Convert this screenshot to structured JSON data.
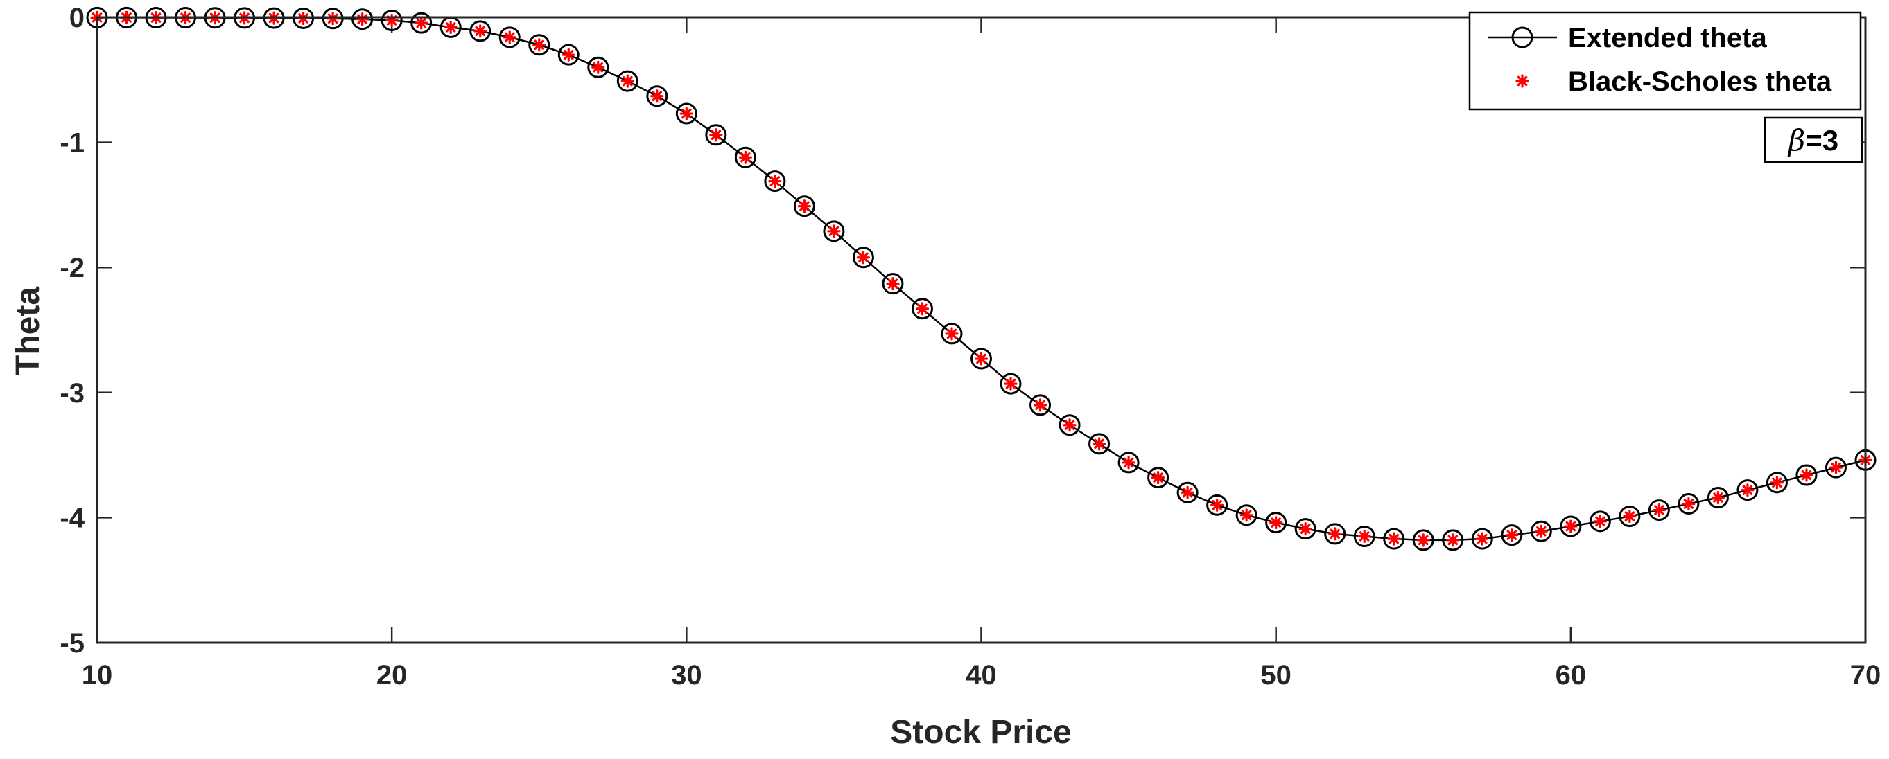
{
  "chart_data": {
    "type": "line",
    "title": "",
    "xlabel": "Stock Price",
    "ylabel": "Theta",
    "xlim": [
      10,
      70
    ],
    "ylim": [
      -5,
      0
    ],
    "xticks": [
      10,
      20,
      30,
      40,
      50,
      60,
      70
    ],
    "yticks": [
      0,
      -1,
      -2,
      -3,
      -4,
      -5
    ],
    "grid": false,
    "legend_position": "top-right",
    "annotation": {
      "symbol": "β",
      "text": "=3"
    },
    "colors": {
      "axis": "#262626",
      "line": "#000000",
      "red_marker": "#ff0000"
    },
    "x": [
      10,
      11,
      12,
      13,
      14,
      15,
      16,
      17,
      18,
      19,
      20,
      21,
      22,
      23,
      24,
      25,
      26,
      27,
      28,
      29,
      30,
      31,
      32,
      33,
      34,
      35,
      36,
      37,
      38,
      39,
      40,
      41,
      42,
      43,
      44,
      45,
      46,
      47,
      48,
      49,
      50,
      51,
      52,
      53,
      54,
      55,
      56,
      57,
      58,
      59,
      60,
      61,
      62,
      63,
      64,
      65,
      66,
      67,
      68,
      69,
      70
    ],
    "series": [
      {
        "name": "Extended theta",
        "marker": "circle",
        "values": [
          -0.002,
          -0.002,
          -0.003,
          -0.003,
          -0.004,
          -0.005,
          -0.006,
          -0.008,
          -0.01,
          -0.015,
          -0.025,
          -0.045,
          -0.08,
          -0.11,
          -0.16,
          -0.22,
          -0.3,
          -0.4,
          -0.51,
          -0.63,
          -0.77,
          -0.94,
          -1.12,
          -1.31,
          -1.51,
          -1.71,
          -1.92,
          -2.13,
          -2.33,
          -2.53,
          -2.73,
          -2.93,
          -3.1,
          -3.26,
          -3.41,
          -3.56,
          -3.68,
          -3.8,
          -3.9,
          -3.98,
          -4.04,
          -4.09,
          -4.13,
          -4.15,
          -4.17,
          -4.18,
          -4.18,
          -4.17,
          -4.14,
          -4.11,
          -4.07,
          -4.03,
          -3.99,
          -3.94,
          -3.89,
          -3.84,
          -3.78,
          -3.72,
          -3.66,
          -3.6,
          -3.54
        ]
      },
      {
        "name": "Black-Scholes theta",
        "marker": "asterisk",
        "values": [
          -0.002,
          -0.002,
          -0.003,
          -0.003,
          -0.004,
          -0.005,
          -0.006,
          -0.008,
          -0.01,
          -0.015,
          -0.025,
          -0.045,
          -0.08,
          -0.11,
          -0.16,
          -0.22,
          -0.3,
          -0.4,
          -0.51,
          -0.63,
          -0.77,
          -0.94,
          -1.12,
          -1.31,
          -1.51,
          -1.71,
          -1.92,
          -2.13,
          -2.33,
          -2.53,
          -2.73,
          -2.93,
          -3.1,
          -3.26,
          -3.41,
          -3.56,
          -3.68,
          -3.8,
          -3.9,
          -3.98,
          -4.04,
          -4.09,
          -4.13,
          -4.15,
          -4.17,
          -4.18,
          -4.18,
          -4.17,
          -4.14,
          -4.11,
          -4.07,
          -4.03,
          -3.99,
          -3.94,
          -3.89,
          -3.84,
          -3.78,
          -3.72,
          -3.66,
          -3.6,
          -3.54
        ]
      }
    ]
  }
}
